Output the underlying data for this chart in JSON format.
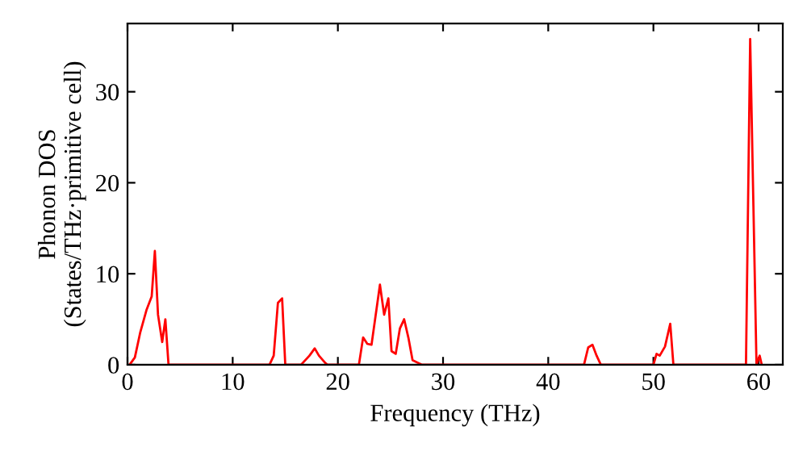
{
  "chart_data": {
    "type": "line",
    "xlabel": "Frequency (THz)",
    "ylabel": "Phonon DOS\n(States/THz·primitive cell)",
    "series": [
      {
        "color": "#ff0000",
        "x": [
          0.2,
          0.7,
          1.2,
          1.8,
          2.3,
          2.6,
          2.9,
          3.3,
          3.6,
          3.9,
          13.5,
          13.9,
          14.3,
          14.7,
          15.0,
          16.5,
          17.3,
          17.8,
          18.2,
          18.8,
          19.0,
          22.0,
          22.4,
          22.8,
          23.2,
          24.0,
          24.4,
          24.8,
          25.1,
          25.5,
          25.9,
          26.3,
          26.7,
          27.1,
          28.0,
          43.4,
          43.8,
          44.2,
          44.6,
          45.0,
          50.0,
          50.3,
          50.6,
          51.1,
          51.6,
          51.9,
          58.8,
          59.2,
          59.8,
          60.1,
          60.3
        ],
        "values": [
          0,
          0.8,
          3.5,
          6,
          7.5,
          12.5,
          5.5,
          2.5,
          5,
          0,
          0,
          1,
          6.8,
          7.3,
          0,
          0,
          1,
          1.8,
          1,
          0.2,
          0,
          0,
          3,
          2.3,
          2.2,
          8.8,
          5.5,
          7.3,
          1.5,
          1.2,
          4,
          5,
          3,
          0.5,
          0,
          0,
          1.9,
          2.2,
          1,
          0,
          0,
          1.2,
          1,
          2,
          4.5,
          0,
          0,
          35.8,
          0,
          1,
          0
        ]
      }
    ],
    "xlim": [
      0,
      62.3
    ],
    "ylim": [
      0,
      37.5
    ],
    "xticks": [
      0,
      10,
      20,
      30,
      40,
      50,
      60
    ],
    "yticks": [
      0,
      10,
      20,
      30
    ],
    "grid": false,
    "line_style": "solid",
    "marker": "none"
  }
}
